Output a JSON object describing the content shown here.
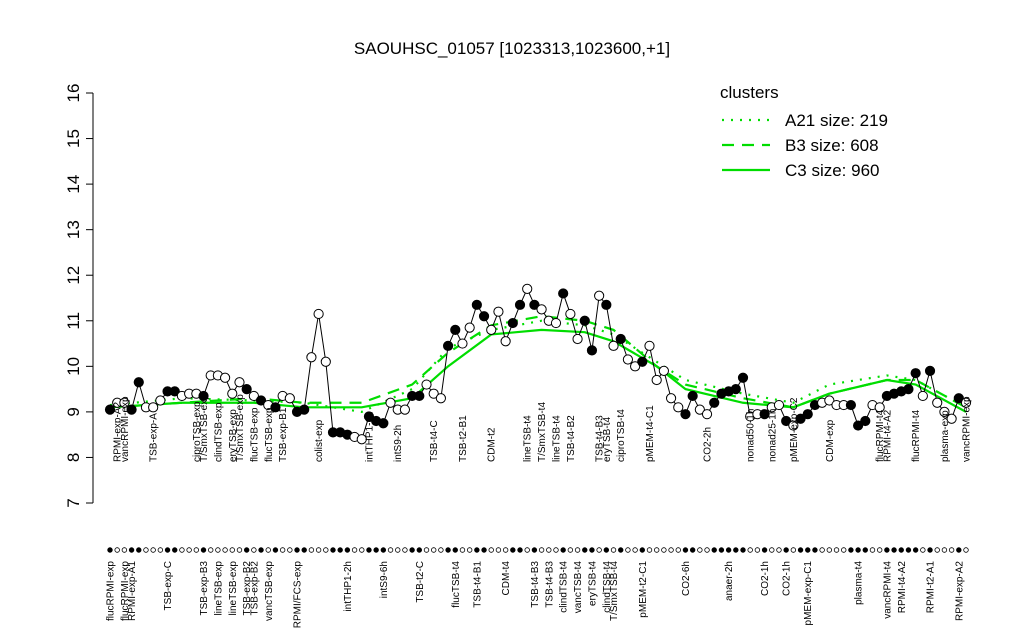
{
  "chart_data": {
    "type": "line",
    "title": "SAOUHSC_01057 [1023313,1023600,+1]",
    "ylim": [
      7,
      16
    ],
    "yticks": [
      7,
      8,
      9,
      10,
      11,
      12,
      13,
      14,
      15,
      16
    ],
    "values": [
      9.05,
      9.2,
      9.2,
      9.05,
      9.65,
      9.1,
      9.1,
      9.25,
      9.45,
      9.45,
      9.35,
      9.4,
      9.4,
      9.35,
      9.8,
      9.8,
      9.75,
      9.4,
      9.65,
      9.5,
      9.35,
      9.25,
      9.15,
      9.1,
      9.35,
      9.3,
      9.0,
      9.05,
      10.2,
      11.15,
      10.1,
      8.55,
      8.55,
      8.5,
      8.45,
      8.4,
      8.9,
      8.8,
      8.75,
      9.2,
      9.05,
      9.05,
      9.35,
      9.35,
      9.6,
      9.4,
      9.3,
      10.45,
      10.8,
      10.5,
      10.85,
      11.35,
      11.1,
      10.8,
      11.2,
      10.55,
      10.95,
      11.35,
      11.7,
      11.35,
      11.25,
      11.0,
      10.95,
      11.6,
      11.15,
      10.6,
      11.0,
      10.35,
      11.55,
      11.35,
      10.45,
      10.6,
      10.15,
      10.0,
      10.1,
      10.45,
      9.7,
      9.9,
      9.3,
      9.1,
      8.95,
      9.35,
      9.05,
      8.95,
      9.2,
      9.4,
      9.45,
      9.5,
      9.75,
      8.9,
      8.95,
      8.95,
      9.1,
      9.15,
      8.8,
      8.7,
      8.85,
      8.95,
      9.15,
      9.2,
      9.25,
      9.15,
      9.15,
      9.15,
      8.7,
      8.8,
      9.15,
      9.1,
      9.35,
      9.4,
      9.45,
      9.5,
      9.85,
      9.35,
      9.9,
      9.2,
      9.0,
      8.85,
      9.3,
      9.2
    ],
    "filled": [
      true,
      false,
      false,
      true,
      true,
      false,
      false,
      false,
      true,
      true,
      false,
      false,
      false,
      true,
      false,
      false,
      false,
      false,
      false,
      true,
      false,
      true,
      false,
      true,
      false,
      false,
      true,
      true,
      false,
      false,
      false,
      true,
      true,
      true,
      false,
      false,
      true,
      true,
      true,
      false,
      false,
      false,
      true,
      true,
      false,
      false,
      false,
      true,
      true,
      false,
      false,
      true,
      true,
      false,
      false,
      false,
      true,
      true,
      false,
      true,
      false,
      false,
      false,
      true,
      false,
      false,
      true,
      true,
      false,
      true,
      false,
      true,
      false,
      false,
      true,
      false,
      false,
      false,
      false,
      false,
      true,
      true,
      false,
      false,
      true,
      true,
      true,
      true,
      true,
      false,
      false,
      true,
      false,
      false,
      true,
      false,
      true,
      true,
      true,
      false,
      false,
      false,
      false,
      true,
      true,
      true,
      false,
      false,
      true,
      true,
      true,
      true,
      true,
      false,
      true,
      false,
      false,
      false,
      true,
      false
    ],
    "top_labels": [
      null,
      "RPMI-exp-A2",
      "vancRPMI-exp",
      null,
      null,
      null,
      "TSB-exp-A",
      null,
      null,
      null,
      null,
      null,
      "ciproTSB-exp",
      "T/SmxTSB-exp",
      null,
      "clindTSB-exp",
      null,
      "eryTSB-exp",
      "T/SmxTSB-exp",
      null,
      "flucTSB-exp",
      null,
      "flucTSB-exp",
      null,
      "TSB-exp-B1",
      null,
      null,
      null,
      null,
      "colist-exp",
      null,
      null,
      null,
      null,
      null,
      null,
      "intTHP1-6h",
      null,
      null,
      null,
      "intS9-2h",
      null,
      null,
      null,
      null,
      "TSB-t4-C",
      null,
      null,
      null,
      "TSB-t2-B1",
      null,
      null,
      null,
      "CDM-t2",
      null,
      null,
      null,
      null,
      "lineTSB-t4",
      null,
      "T/SmxTSB-t4",
      null,
      "lineTSB-t4",
      null,
      "TSB-t4-B2",
      null,
      null,
      null,
      "TSB-t4-B3",
      "eryTSB-t4",
      null,
      "ciproTSB-t4",
      null,
      null,
      null,
      "pMEM-t4-C1",
      null,
      null,
      null,
      null,
      null,
      null,
      null,
      "CO2-2h",
      null,
      null,
      null,
      null,
      null,
      "nonad50-1h",
      null,
      null,
      "nonad25-1h",
      null,
      null,
      "pMEM-exp-C2",
      null,
      null,
      null,
      null,
      "CDM-exp",
      null,
      null,
      null,
      null,
      null,
      null,
      "flucRPMI-t4",
      "RPMI-t4-A2",
      null,
      null,
      null,
      "flucRPMI-t4",
      null,
      null,
      null,
      "plasma-exp",
      null,
      null,
      "vancRPMI-exp"
    ],
    "bottom_labels": [
      "flucRPMI-exp",
      null,
      "flucRPMI-exp",
      "RPMI-exp-A1",
      null,
      null,
      null,
      null,
      "TSB-exp-C",
      null,
      null,
      null,
      null,
      "TSB-exp-B3",
      null,
      "lineTSB-exp",
      null,
      "lineTSB-exp",
      null,
      "TSB-exp-B2",
      "TSB-exp-B2",
      null,
      "vancTSB-exp",
      null,
      null,
      null,
      "RPMI/FCS-exp",
      null,
      null,
      null,
      null,
      null,
      null,
      "intTHP1-2h",
      null,
      null,
      null,
      null,
      "intS9-6h",
      null,
      null,
      null,
      null,
      "TSB-t2-C",
      null,
      null,
      null,
      null,
      "flucTSB-t4",
      null,
      null,
      "TSB-t4-B1",
      null,
      null,
      null,
      "CDM-t4",
      null,
      null,
      null,
      "TSB-t4-B3",
      null,
      "TSB-t4-B3",
      null,
      "clindTSB-t4",
      null,
      "vancTSB-t4",
      null,
      "eryTSB-t4",
      null,
      "clindTSB-t4",
      "T/SmxTSB-t4",
      null,
      null,
      null,
      "pMEM-t2-C1",
      null,
      null,
      null,
      null,
      null,
      "CO2-6h",
      null,
      null,
      null,
      null,
      null,
      "anaer-2h",
      null,
      null,
      null,
      null,
      "CO2-1h",
      null,
      null,
      "CO2-1h",
      null,
      null,
      "pMEM-exp-C1",
      null,
      null,
      null,
      null,
      null,
      null,
      "plasma-t4",
      null,
      null,
      null,
      "vancRPMI-t4",
      null,
      "RPMI-t4-A2",
      null,
      null,
      null,
      "RPMI-t2-A1",
      null,
      null,
      null,
      "RPMI-exp-A2",
      null
    ],
    "legend_title": "clusters",
    "legend_color": "#00dd00",
    "series": [
      {
        "name": "A21 size: 219",
        "style": "dotted",
        "color": "#00dd00",
        "x": [
          0,
          10,
          20,
          27,
          35,
          42,
          47,
          53,
          60,
          66,
          70,
          76,
          80,
          88,
          95,
          100,
          108,
          112,
          119
        ],
        "values": [
          9.15,
          9.3,
          9.25,
          9.2,
          9.0,
          9.5,
          10.4,
          10.8,
          11.0,
          10.9,
          10.7,
          10.1,
          9.7,
          9.4,
          9.2,
          9.6,
          9.8,
          9.7,
          9.1
        ]
      },
      {
        "name": "B3 size: 608",
        "style": "dashed",
        "color": "#00dd00",
        "x": [
          0,
          10,
          20,
          27,
          35,
          42,
          47,
          53,
          60,
          66,
          70,
          76,
          80,
          88,
          95,
          100,
          108,
          112,
          119
        ],
        "values": [
          9.1,
          9.2,
          9.3,
          9.2,
          9.2,
          9.6,
          10.3,
          10.9,
          11.1,
          11.0,
          10.8,
          10.0,
          9.6,
          9.3,
          9.1,
          9.4,
          9.7,
          9.7,
          9.1
        ]
      },
      {
        "name": "C3 size: 960",
        "style": "solid",
        "color": "#00dd00",
        "x": [
          0,
          10,
          20,
          27,
          35,
          42,
          47,
          53,
          60,
          66,
          70,
          76,
          80,
          88,
          95,
          100,
          108,
          112,
          119
        ],
        "values": [
          9.1,
          9.2,
          9.2,
          9.1,
          9.1,
          9.3,
          10.0,
          10.7,
          10.8,
          10.75,
          10.55,
          10.0,
          9.5,
          9.2,
          9.1,
          9.4,
          9.7,
          9.6,
          9.0
        ]
      }
    ]
  }
}
